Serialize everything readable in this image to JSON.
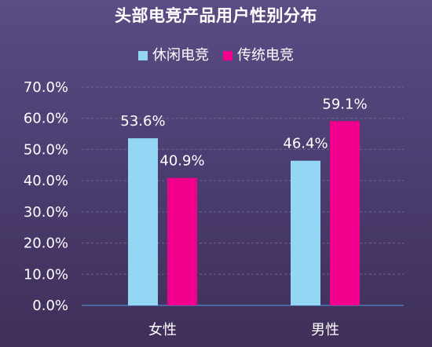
{
  "chart_data": {
    "type": "bar",
    "title": "头部电竞产品用户性别分布",
    "categories": [
      "女性",
      "男性"
    ],
    "series": [
      {
        "name": "休闲电竞",
        "values": [
          53.6,
          46.4
        ],
        "color": "#93d7f4"
      },
      {
        "name": "传统电竞",
        "values": [
          40.9,
          59.1
        ],
        "color": "#f0008c"
      }
    ],
    "ylim": [
      0,
      70
    ],
    "yticks": [
      "0.0%",
      "10.0%",
      "20.0%",
      "30.0%",
      "40.0%",
      "50.0%",
      "60.0%",
      "70.0%"
    ],
    "data_labels": [
      [
        "53.6%",
        "40.9%"
      ],
      [
        "46.4%",
        "59.1%"
      ]
    ],
    "legend": "top-center",
    "grid": true
  },
  "colors": {
    "background_top": "#5b4d84",
    "background_bottom": "#3f2f59",
    "grid": "#7f7398",
    "axis": "#4d79b4",
    "text": "#ffffff"
  }
}
